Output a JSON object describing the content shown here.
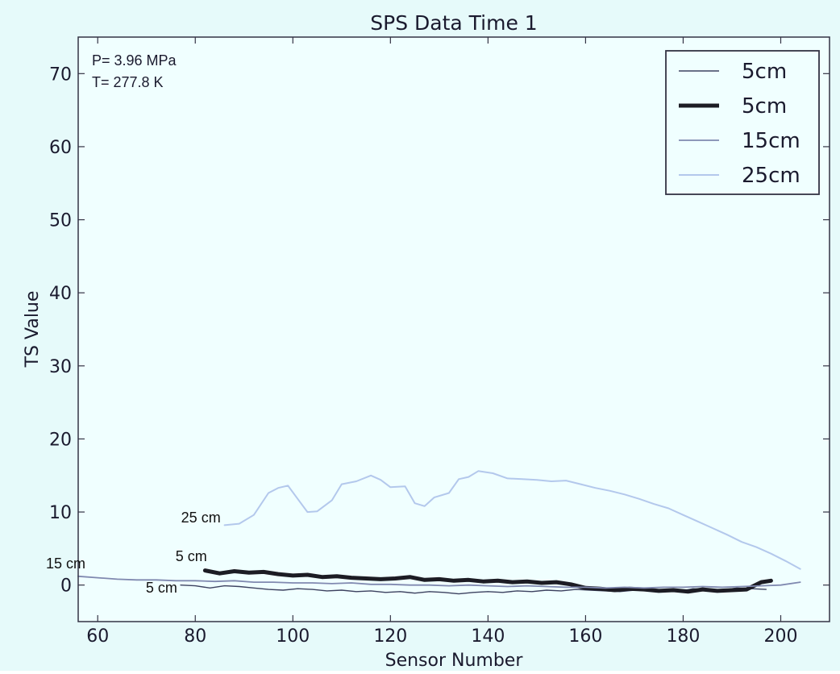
{
  "chart_data": {
    "type": "line",
    "title": "SPS Data Time 1",
    "xlabel": "Sensor Number",
    "ylabel": "TS Value",
    "xlim": [
      56,
      210
    ],
    "ylim": [
      -5,
      75
    ],
    "xticks": [
      60,
      80,
      100,
      120,
      140,
      160,
      180,
      200
    ],
    "yticks": [
      0,
      10,
      20,
      30,
      40,
      50,
      60,
      70
    ],
    "grid": false,
    "legend_position": "top-right",
    "colors": {
      "background": "#f0ffff",
      "figure": "#e6fafa",
      "frame": "#333344",
      "text": "#1a1a2e"
    },
    "info_text": [
      "P= 3.96 MPa",
      "T= 277.8 K"
    ],
    "series": [
      {
        "name": "5cm",
        "color": "#3d4260",
        "width": 1.4,
        "x": [
          77,
          80,
          83,
          86,
          89,
          92,
          95,
          98,
          101,
          104,
          107,
          110,
          113,
          116,
          119,
          122,
          125,
          128,
          131,
          134,
          137,
          140,
          143,
          146,
          149,
          152,
          155,
          158,
          161,
          164,
          167,
          170,
          173,
          176,
          179,
          182,
          185,
          188,
          191,
          194,
          197
        ],
        "y": [
          0.0,
          -0.1,
          -0.4,
          -0.1,
          -0.2,
          -0.4,
          -0.6,
          -0.7,
          -0.5,
          -0.6,
          -0.8,
          -0.7,
          -0.9,
          -0.8,
          -1.0,
          -0.9,
          -1.1,
          -0.9,
          -1.0,
          -1.2,
          -1.0,
          -0.9,
          -1.0,
          -0.8,
          -0.9,
          -0.7,
          -0.8,
          -0.6,
          -0.7,
          -0.8,
          -0.9,
          -0.7,
          -0.8,
          -0.6,
          -0.9,
          -0.5,
          -0.6,
          -0.7,
          -0.4,
          -0.5,
          -0.6
        ]
      },
      {
        "name": "5cm",
        "color": "#1c1c24",
        "width": 5,
        "x": [
          82,
          85,
          88,
          91,
          94,
          97,
          100,
          103,
          106,
          109,
          112,
          115,
          118,
          121,
          124,
          127,
          130,
          133,
          136,
          139,
          142,
          145,
          148,
          151,
          154,
          157,
          160,
          163,
          166,
          169,
          172,
          175,
          178,
          181,
          184,
          187,
          190,
          193,
          196,
          198
        ],
        "y": [
          2.0,
          1.6,
          1.9,
          1.7,
          1.8,
          1.5,
          1.3,
          1.4,
          1.1,
          1.2,
          1.0,
          0.9,
          0.8,
          0.9,
          1.1,
          0.7,
          0.8,
          0.6,
          0.7,
          0.5,
          0.6,
          0.4,
          0.5,
          0.3,
          0.4,
          0.1,
          -0.4,
          -0.5,
          -0.7,
          -0.5,
          -0.6,
          -0.8,
          -0.7,
          -0.9,
          -0.6,
          -0.8,
          -0.7,
          -0.6,
          0.4,
          0.6
        ]
      },
      {
        "name": "15cm",
        "color": "#8089b0",
        "width": 1.8,
        "x": [
          56,
          60,
          64,
          68,
          72,
          76,
          80,
          84,
          88,
          92,
          96,
          100,
          104,
          108,
          112,
          116,
          120,
          124,
          128,
          132,
          136,
          140,
          144,
          148,
          152,
          156,
          160,
          164,
          168,
          172,
          176,
          180,
          184,
          188,
          192,
          196,
          200,
          204
        ],
        "y": [
          1.2,
          1.0,
          0.8,
          0.7,
          0.7,
          0.6,
          0.6,
          0.5,
          0.6,
          0.4,
          0.4,
          0.3,
          0.3,
          0.2,
          0.3,
          0.1,
          0.1,
          0.0,
          0.0,
          -0.1,
          0.0,
          -0.1,
          -0.2,
          -0.1,
          -0.2,
          -0.3,
          -0.3,
          -0.4,
          -0.3,
          -0.4,
          -0.3,
          -0.3,
          -0.2,
          -0.3,
          -0.2,
          -0.1,
          0.0,
          0.4
        ]
      },
      {
        "name": "25cm",
        "color": "#b3c8ec",
        "width": 2,
        "x": [
          86,
          89,
          92,
          95,
          97,
          99,
          101,
          103,
          105,
          108,
          110,
          113,
          116,
          118,
          120,
          123,
          125,
          127,
          129,
          132,
          134,
          136,
          138,
          141,
          144,
          147,
          150,
          153,
          156,
          159,
          162,
          165,
          168,
          171,
          174,
          177,
          180,
          183,
          186,
          189,
          192,
          195,
          198,
          201,
          204
        ],
        "y": [
          8.2,
          8.4,
          9.6,
          12.6,
          13.3,
          13.6,
          11.8,
          10.0,
          10.1,
          11.6,
          13.8,
          14.2,
          15.0,
          14.4,
          13.4,
          13.5,
          11.2,
          10.8,
          12.0,
          12.6,
          14.5,
          14.8,
          15.6,
          15.3,
          14.6,
          14.5,
          14.4,
          14.2,
          14.3,
          13.8,
          13.3,
          12.9,
          12.4,
          11.8,
          11.1,
          10.5,
          9.6,
          8.7,
          7.8,
          6.9,
          5.9,
          5.2,
          4.3,
          3.3,
          2.2
        ]
      }
    ],
    "annotations": [
      {
        "text": "25 cm",
        "x": 85.2,
        "y": 8.6
      },
      {
        "text": "5 cm",
        "x": 82.4,
        "y": 3.3
      },
      {
        "text": "15 cm",
        "x": 57.5,
        "y": 2.3
      },
      {
        "text": "5 cm",
        "x": 76.3,
        "y": -1.0
      }
    ]
  }
}
